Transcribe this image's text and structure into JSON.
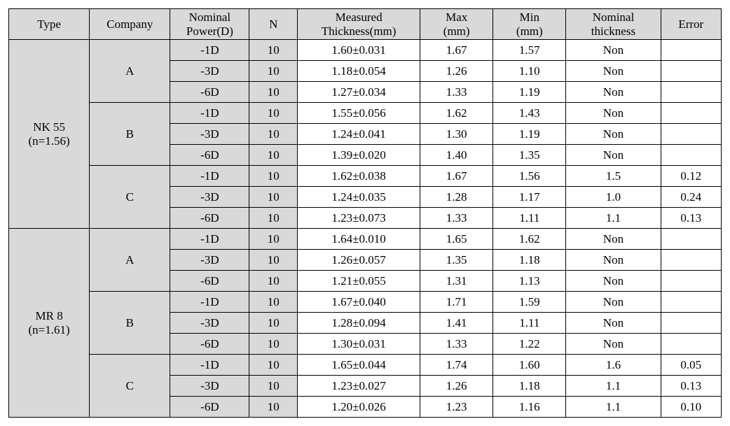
{
  "columns": {
    "type": "Type",
    "company": "Company",
    "nominalPower_l1": "Nominal",
    "nominalPower_l2": "Power(D)",
    "n": "N",
    "measured_l1": "Measured",
    "measured_l2": "Thickness(mm)",
    "max_l1": "Max",
    "max_l2": "(mm)",
    "min_l1": "Min",
    "min_l2": "(mm)",
    "nominalThk_l1": "Nominal",
    "nominalThk_l2": "thickness",
    "error": "Error"
  },
  "colWidths": {
    "type": 104,
    "company": 104,
    "nominalPower": 102,
    "n": 62,
    "measured": 158,
    "max": 94,
    "min": 94,
    "nominalThk": 122,
    "error": 78
  },
  "types": [
    {
      "label_l1": "NK 55",
      "label_l2": "(n=1.56)"
    },
    {
      "label_l1": "MR 8",
      "label_l2": "(n=1.61)"
    }
  ],
  "companies": [
    "A",
    "B",
    "C"
  ],
  "rows": [
    {
      "t": 0,
      "c": 0,
      "power": "-1D",
      "N": "10",
      "meas": "1.60±0.031",
      "max": "1.67",
      "min": "1.57",
      "nthk": "Non",
      "err": ""
    },
    {
      "t": 0,
      "c": 0,
      "power": "-3D",
      "N": "10",
      "meas": "1.18±0.054",
      "max": "1.26",
      "min": "1.10",
      "nthk": "Non",
      "err": ""
    },
    {
      "t": 0,
      "c": 0,
      "power": "-6D",
      "N": "10",
      "meas": "1.27±0.034",
      "max": "1.33",
      "min": "1.19",
      "nthk": "Non",
      "err": ""
    },
    {
      "t": 0,
      "c": 1,
      "power": "-1D",
      "N": "10",
      "meas": "1.55±0.056",
      "max": "1.62",
      "min": "1.43",
      "nthk": "Non",
      "err": ""
    },
    {
      "t": 0,
      "c": 1,
      "power": "-3D",
      "N": "10",
      "meas": "1.24±0.041",
      "max": "1.30",
      "min": "1.19",
      "nthk": "Non",
      "err": ""
    },
    {
      "t": 0,
      "c": 1,
      "power": "-6D",
      "N": "10",
      "meas": "1.39±0.020",
      "max": "1.40",
      "min": "1.35",
      "nthk": "Non",
      "err": ""
    },
    {
      "t": 0,
      "c": 2,
      "power": "-1D",
      "N": "10",
      "meas": "1.62±0.038",
      "max": "1.67",
      "min": "1.56",
      "nthk": "1.5",
      "err": "0.12"
    },
    {
      "t": 0,
      "c": 2,
      "power": "-3D",
      "N": "10",
      "meas": "1.24±0.035",
      "max": "1.28",
      "min": "1.17",
      "nthk": "1.0",
      "err": "0.24"
    },
    {
      "t": 0,
      "c": 2,
      "power": "-6D",
      "N": "10",
      "meas": "1.23±0.073",
      "max": "1.33",
      "min": "1.11",
      "nthk": "1.1",
      "err": "0.13"
    },
    {
      "t": 1,
      "c": 0,
      "power": "-1D",
      "N": "10",
      "meas": "1.64±0.010",
      "max": "1.65",
      "min": "1.62",
      "nthk": "Non",
      "err": ""
    },
    {
      "t": 1,
      "c": 0,
      "power": "-3D",
      "N": "10",
      "meas": "1.26±0.057",
      "max": "1.35",
      "min": "1.18",
      "nthk": "Non",
      "err": ""
    },
    {
      "t": 1,
      "c": 0,
      "power": "-6D",
      "N": "10",
      "meas": "1.21±0.055",
      "max": "1.31",
      "min": "1.13",
      "nthk": "Non",
      "err": ""
    },
    {
      "t": 1,
      "c": 1,
      "power": "-1D",
      "N": "10",
      "meas": "1.67±0.040",
      "max": "1.71",
      "min": "1.59",
      "nthk": "Non",
      "err": ""
    },
    {
      "t": 1,
      "c": 1,
      "power": "-3D",
      "N": "10",
      "meas": "1.28±0.094",
      "max": "1.41",
      "min": "1.11",
      "nthk": "Non",
      "err": ""
    },
    {
      "t": 1,
      "c": 1,
      "power": "-6D",
      "N": "10",
      "meas": "1.30±0.031",
      "max": "1.33",
      "min": "1.22",
      "nthk": "Non",
      "err": ""
    },
    {
      "t": 1,
      "c": 2,
      "power": "-1D",
      "N": "10",
      "meas": "1.65±0.044",
      "max": "1.74",
      "min": "1.60",
      "nthk": "1.6",
      "err": "0.05"
    },
    {
      "t": 1,
      "c": 2,
      "power": "-3D",
      "N": "10",
      "meas": "1.23±0.027",
      "max": "1.26",
      "min": "1.18",
      "nthk": "1.1",
      "err": "0.13"
    },
    {
      "t": 1,
      "c": 2,
      "power": "-6D",
      "N": "10",
      "meas": "1.20±0.026",
      "max": "1.23",
      "min": "1.16",
      "nthk": "1.1",
      "err": "0.10"
    }
  ]
}
